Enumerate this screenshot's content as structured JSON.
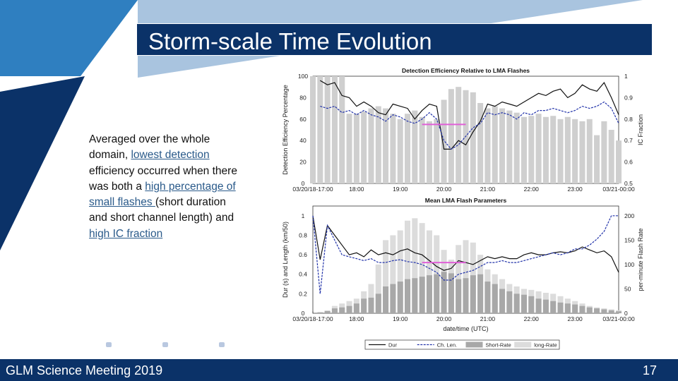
{
  "slide": {
    "title": "Storm-scale Time Evolution",
    "body": {
      "p1": "Averaged over the whole domain, ",
      "l1": "lowest detection",
      "p2": " efficiency occurred when there was both a ",
      "l2": "high percentage of small flashes ",
      "p3": "(short duration and short channel length) and ",
      "l3": "high IC fraction"
    },
    "footer": "GLM Science Meeting 2019",
    "page_number": "17"
  },
  "colors": {
    "navy": "#0b3268",
    "blue": "#2f7fc0",
    "light_blue": "#a9c4df",
    "highlight": "#e060d8",
    "series_black": "#111111",
    "series_blue": "#2233aa",
    "bar_grey": "#cfcfcf"
  },
  "chart_data": [
    {
      "type": "bar",
      "title": "Detection Efficiency Relative to LMA Flashes",
      "ylabel": "Detection Efficiency Percentage",
      "y2label": "IC Fraction",
      "xticks": [
        "03/20/18-17:00",
        "18:00",
        "19:00",
        "20:00",
        "21:00",
        "22:00",
        "23:00",
        "03/21-00:00"
      ],
      "yticks": [
        "0",
        "20",
        "40",
        "60",
        "80",
        "100"
      ],
      "y2ticks": [
        "0.5",
        "0.6",
        "0.7",
        "0.8",
        "0.9",
        "1"
      ],
      "ylim": [
        0,
        100
      ],
      "y2lim": [
        0.5,
        1
      ],
      "x": [
        "17:00",
        "17:10",
        "17:20",
        "17:30",
        "17:40",
        "17:50",
        "18:00",
        "18:10",
        "18:20",
        "18:30",
        "18:40",
        "18:50",
        "19:00",
        "19:10",
        "19:20",
        "19:30",
        "19:40",
        "19:50",
        "20:00",
        "20:10",
        "20:20",
        "20:30",
        "20:40",
        "20:50",
        "21:00",
        "21:10",
        "21:20",
        "21:30",
        "21:40",
        "21:50",
        "22:00",
        "22:10",
        "22:20",
        "22:30",
        "22:40",
        "22:50",
        "23:00",
        "23:10",
        "23:20",
        "23:30",
        "23:40",
        "23:50",
        "00:00"
      ],
      "bars": [
        100,
        100,
        100,
        100,
        100,
        65,
        65,
        67,
        70,
        72,
        70,
        65,
        60,
        65,
        68,
        62,
        58,
        60,
        78,
        88,
        90,
        87,
        85,
        75,
        70,
        72,
        70,
        68,
        66,
        62,
        63,
        65,
        62,
        63,
        60,
        62,
        60,
        58,
        60,
        45,
        58,
        50,
        40
      ],
      "series": [
        {
          "name": "",
          "axis": "right",
          "values": [
            null,
            0.98,
            0.96,
            0.97,
            0.91,
            0.9,
            0.86,
            0.88,
            0.86,
            0.83,
            0.82,
            0.87,
            0.86,
            0.85,
            0.8,
            0.84,
            0.87,
            0.86,
            0.66,
            0.66,
            0.7,
            0.68,
            0.74,
            0.79,
            0.87,
            0.86,
            0.88,
            0.87,
            0.86,
            0.88,
            0.9,
            0.92,
            0.91,
            0.93,
            0.94,
            0.9,
            0.92,
            0.96,
            0.94,
            0.93,
            0.97,
            0.9,
            0.82
          ]
        },
        {
          "name": "",
          "axis": "right",
          "values": [
            null,
            0.86,
            0.85,
            0.86,
            0.83,
            0.84,
            0.82,
            0.84,
            0.82,
            0.81,
            0.79,
            0.82,
            0.81,
            0.79,
            0.78,
            0.8,
            0.83,
            0.8,
            0.7,
            0.66,
            0.68,
            0.72,
            0.76,
            0.78,
            0.83,
            0.82,
            0.83,
            0.82,
            0.8,
            0.83,
            0.82,
            0.84,
            0.84,
            0.85,
            0.84,
            0.83,
            0.84,
            0.86,
            0.85,
            0.86,
            0.88,
            0.85,
            0.78
          ]
        }
      ],
      "annotation": {
        "type": "hline",
        "x_from": "19:30",
        "x_to": "20:30",
        "y": 55
      }
    },
    {
      "type": "bar",
      "title": "Mean LMA Flash Parameters",
      "ylabel": "Dur (s) and Length (km/50)",
      "y2label": "per-minute Flash Rate",
      "xlabel": "date/time (UTC)",
      "xticks": [
        "03/20/18-17:00",
        "18:00",
        "19:00",
        "20:00",
        "21:00",
        "22:00",
        "23:00",
        "03/21-00:00"
      ],
      "yticks": [
        "0",
        "0.2",
        "0.4",
        "0.6",
        "0.8",
        "1"
      ],
      "y2ticks": [
        "0",
        "50",
        "100",
        "150",
        "200"
      ],
      "ylim": [
        0,
        1.1
      ],
      "y2lim": [
        0,
        220
      ],
      "x": [
        "17:00",
        "17:10",
        "17:20",
        "17:30",
        "17:40",
        "17:50",
        "18:00",
        "18:10",
        "18:20",
        "18:30",
        "18:40",
        "18:50",
        "19:00",
        "19:10",
        "19:20",
        "19:30",
        "19:40",
        "19:50",
        "20:00",
        "20:10",
        "20:20",
        "20:30",
        "20:40",
        "20:50",
        "21:00",
        "21:10",
        "21:20",
        "21:30",
        "21:40",
        "21:50",
        "22:00",
        "22:10",
        "22:20",
        "22:30",
        "22:40",
        "22:50",
        "23:00",
        "23:10",
        "23:20",
        "23:30",
        "23:40",
        "23:50",
        "00:00"
      ],
      "short_rate": [
        0,
        2,
        5,
        10,
        12,
        15,
        20,
        30,
        32,
        40,
        55,
        60,
        65,
        70,
        72,
        75,
        78,
        80,
        85,
        82,
        70,
        72,
        78,
        80,
        65,
        60,
        50,
        45,
        40,
        38,
        35,
        30,
        28,
        25,
        22,
        20,
        18,
        15,
        12,
        10,
        8,
        6,
        4
      ],
      "long_rate": [
        0,
        2,
        5,
        15,
        20,
        25,
        30,
        45,
        60,
        100,
        150,
        160,
        170,
        190,
        195,
        185,
        170,
        160,
        130,
        110,
        140,
        150,
        145,
        120,
        90,
        80,
        70,
        60,
        55,
        50,
        48,
        45,
        42,
        40,
        35,
        30,
        25,
        20,
        15,
        12,
        10,
        8,
        6
      ],
      "series": [
        {
          "name": "Dur",
          "axis": "left",
          "values": [
            1.0,
            0.55,
            0.9,
            0.8,
            0.7,
            0.6,
            0.62,
            0.58,
            0.65,
            0.6,
            0.62,
            0.6,
            0.64,
            0.66,
            0.62,
            0.6,
            0.54,
            0.48,
            0.44,
            0.46,
            0.54,
            0.52,
            0.5,
            0.54,
            0.58,
            0.56,
            0.58,
            0.56,
            0.56,
            0.6,
            0.62,
            0.6,
            0.6,
            0.62,
            0.63,
            0.62,
            0.64,
            0.68,
            0.65,
            0.62,
            0.64,
            0.58,
            0.42
          ]
        },
        {
          "name": "Ch. Len.",
          "axis": "left",
          "values": [
            1.0,
            0.2,
            0.9,
            0.75,
            0.6,
            0.58,
            0.56,
            0.54,
            0.56,
            0.52,
            0.52,
            0.54,
            0.55,
            0.53,
            0.52,
            0.5,
            0.46,
            0.42,
            0.34,
            0.34,
            0.4,
            0.42,
            0.44,
            0.48,
            0.52,
            0.52,
            0.54,
            0.52,
            0.52,
            0.54,
            0.56,
            0.58,
            0.6,
            0.62,
            0.6,
            0.62,
            0.66,
            0.66,
            0.7,
            0.76,
            0.84,
            1.0,
            1.0
          ]
        }
      ],
      "legend": [
        "Dur",
        "Ch. Len.",
        "Short-Rate",
        "long-Rate"
      ],
      "legend_position": "bottom",
      "annotation": {
        "type": "hline",
        "x_from": "19:30",
        "x_to": "20:30",
        "y": 0.52
      }
    }
  ]
}
